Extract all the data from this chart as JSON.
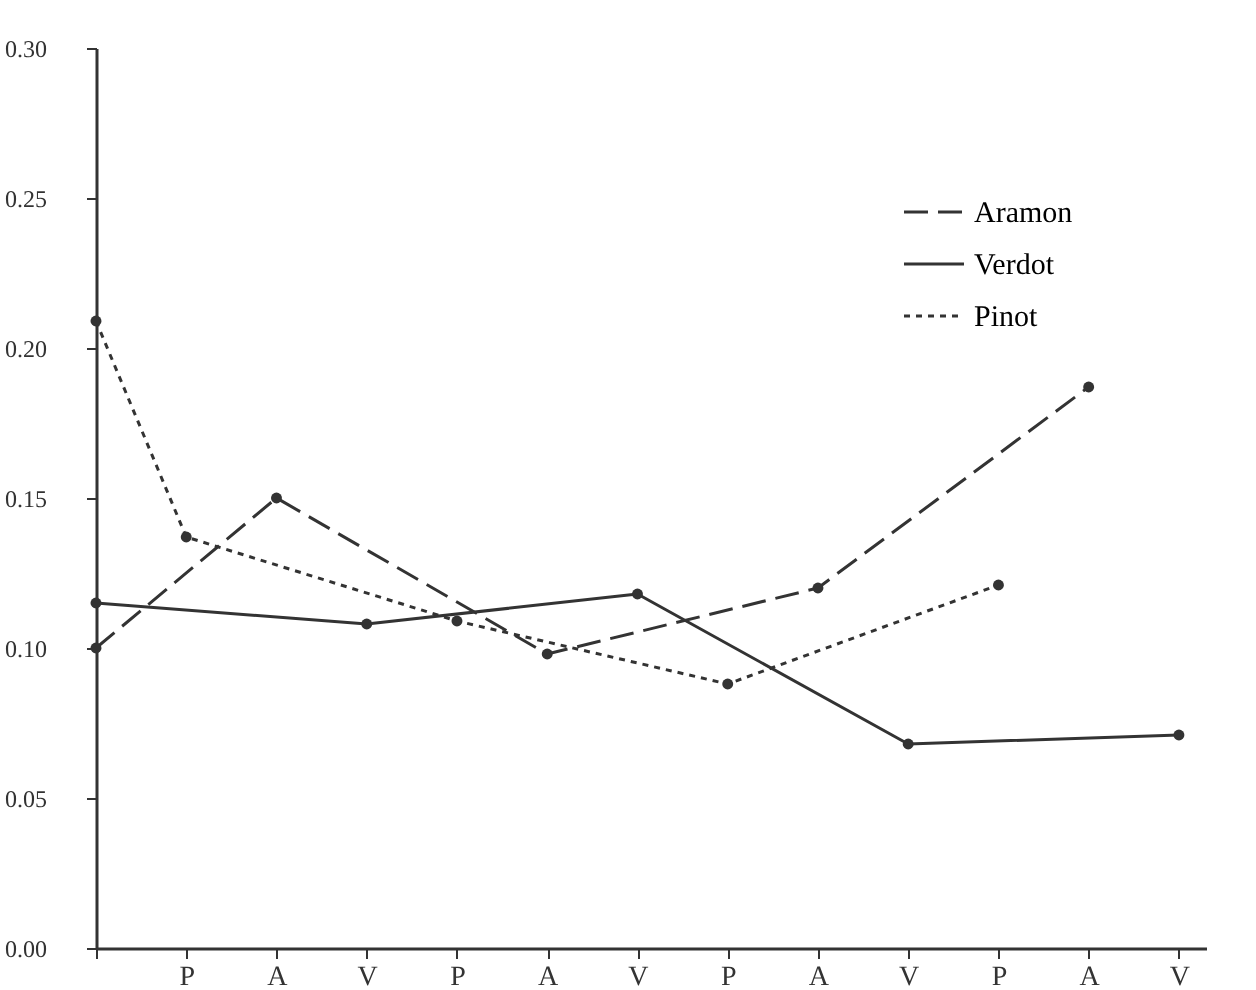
{
  "chart_data": {
    "type": "line",
    "categories": [
      null,
      "P",
      "A",
      "V",
      "P",
      "A",
      "V",
      "P",
      "A",
      "V",
      "P",
      "A",
      "V"
    ],
    "ylim": [
      0,
      0.3
    ],
    "yticks": [
      {
        "value": 0,
        "label": "0.00"
      },
      {
        "value": 0.05,
        "label": "0.05"
      },
      {
        "value": 0.1,
        "label": "0.10"
      },
      {
        "value": 0.15,
        "label": "0.15"
      },
      {
        "value": 0.2,
        "label": "0.20"
      },
      {
        "value": 0.25,
        "label": "0.25"
      },
      {
        "value": 0.3,
        "label": "0.30"
      }
    ],
    "grid": false,
    "legend": "top right",
    "marker": "circle",
    "series": [
      {
        "name": "Aramon",
        "color": "#333333",
        "line_style": "dashed",
        "values": [
          0.1,
          null,
          0.15,
          null,
          null,
          0.098,
          null,
          null,
          0.12,
          null,
          null,
          0.187,
          null
        ]
      },
      {
        "name": "Verdot",
        "color": "#333333",
        "line_style": "solid",
        "values": [
          0.115,
          null,
          null,
          0.108,
          null,
          null,
          0.118,
          null,
          null,
          0.068,
          null,
          null,
          0.071
        ]
      },
      {
        "name": "Pinot",
        "color": "#333333",
        "line_style": "dotted",
        "values": [
          0.209,
          0.137,
          null,
          null,
          0.109,
          null,
          null,
          0.088,
          null,
          null,
          0.121,
          null,
          null
        ]
      }
    ]
  }
}
